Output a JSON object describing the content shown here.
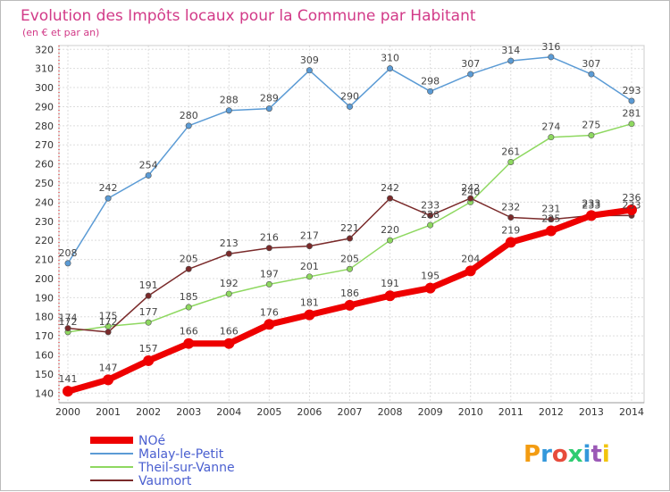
{
  "chart_data": {
    "type": "line",
    "title": "Evolution des Impôts locaux pour la Commune par Habitant",
    "subtitle": "(en € et par an)",
    "x": [
      "2000",
      "2001",
      "2002",
      "2003",
      "2004",
      "2005",
      "2006",
      "2007",
      "2008",
      "2009",
      "2010",
      "2011",
      "2012",
      "2013",
      "2014"
    ],
    "ylim": [
      135,
      322
    ],
    "yticks": [
      140,
      150,
      160,
      170,
      180,
      190,
      200,
      210,
      220,
      230,
      240,
      250,
      260,
      270,
      280,
      290,
      300,
      310,
      320
    ],
    "grid": true,
    "legend_position": "bottom-left",
    "series": [
      {
        "name": "NOé",
        "color": "#ee0000",
        "values": [
          141,
          147,
          157,
          166,
          166,
          176,
          181,
          186,
          191,
          195,
          204,
          219,
          225,
          233,
          236
        ]
      },
      {
        "name": "Malay-le-Petit",
        "color": "#5b9bd5",
        "values": [
          208,
          242,
          254,
          280,
          288,
          289,
          309,
          290,
          310,
          298,
          307,
          314,
          316,
          307,
          293
        ]
      },
      {
        "name": "Theil-sur-Vanne",
        "color": "#8ed860",
        "values": [
          172,
          175,
          177,
          185,
          192,
          197,
          201,
          205,
          220,
          228,
          240,
          261,
          274,
          275,
          281
        ]
      },
      {
        "name": "Vaumort",
        "color": "#7a2a2a",
        "values": [
          174,
          172,
          191,
          205,
          213,
          216,
          217,
          221,
          242,
          233,
          242,
          232,
          231,
          233,
          233
        ]
      }
    ]
  },
  "logo": {
    "text": "Proxiti",
    "colors": [
      "#f39c12",
      "#3498db",
      "#e74c3c",
      "#2ecc71",
      "#3498db",
      "#9b59b6",
      "#f1c40f"
    ]
  }
}
